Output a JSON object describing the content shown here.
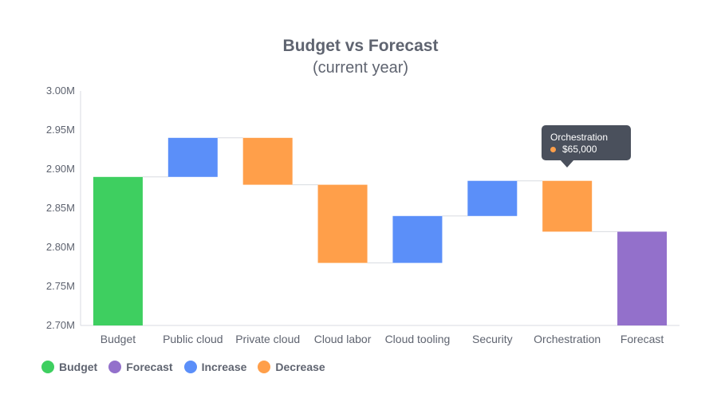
{
  "chart_data": {
    "type": "waterfall",
    "title": "Budget vs Forecast",
    "subtitle": "(current year)",
    "ylim": [
      2.7,
      3.0
    ],
    "yticks": [
      {
        "value": 2.7,
        "label": "2.70M"
      },
      {
        "value": 2.75,
        "label": "2.75M"
      },
      {
        "value": 2.8,
        "label": "2.80M"
      },
      {
        "value": 2.85,
        "label": "2.85M"
      },
      {
        "value": 2.9,
        "label": "2.90M"
      },
      {
        "value": 2.95,
        "label": "2.95M"
      },
      {
        "value": 3.0,
        "label": "3.00M"
      }
    ],
    "categories": [
      "Budget",
      "Public cloud",
      "Private cloud",
      "Cloud labor",
      "Cloud tooling",
      "Security",
      "Orchestration",
      "Forecast"
    ],
    "bars": [
      {
        "category": "Budget",
        "kind": "Budget",
        "start": 2.7,
        "end": 2.89
      },
      {
        "category": "Public cloud",
        "kind": "Increase",
        "start": 2.89,
        "end": 2.94
      },
      {
        "category": "Private cloud",
        "kind": "Decrease",
        "start": 2.94,
        "end": 2.88
      },
      {
        "category": "Cloud labor",
        "kind": "Decrease",
        "start": 2.88,
        "end": 2.78
      },
      {
        "category": "Cloud tooling",
        "kind": "Increase",
        "start": 2.78,
        "end": 2.84
      },
      {
        "category": "Security",
        "kind": "Increase",
        "start": 2.84,
        "end": 2.885
      },
      {
        "category": "Orchestration",
        "kind": "Decrease",
        "start": 2.885,
        "end": 2.82
      },
      {
        "category": "Forecast",
        "kind": "Forecast",
        "start": 2.7,
        "end": 2.82
      }
    ],
    "legend": [
      {
        "name": "Budget",
        "color": "#3ecf60"
      },
      {
        "name": "Forecast",
        "color": "#9370cb"
      },
      {
        "name": "Increase",
        "color": "#5b8ff9"
      },
      {
        "name": "Decrease",
        "color": "#ff9f4a"
      }
    ],
    "legend_position": "bottom-left",
    "colors": {
      "Budget": "#3ecf60",
      "Forecast": "#9370cb",
      "Increase": "#5b8ff9",
      "Decrease": "#ff9f4a"
    },
    "tooltip": {
      "title": "Orchestration",
      "value": "$65,000",
      "category": "Orchestration"
    }
  }
}
